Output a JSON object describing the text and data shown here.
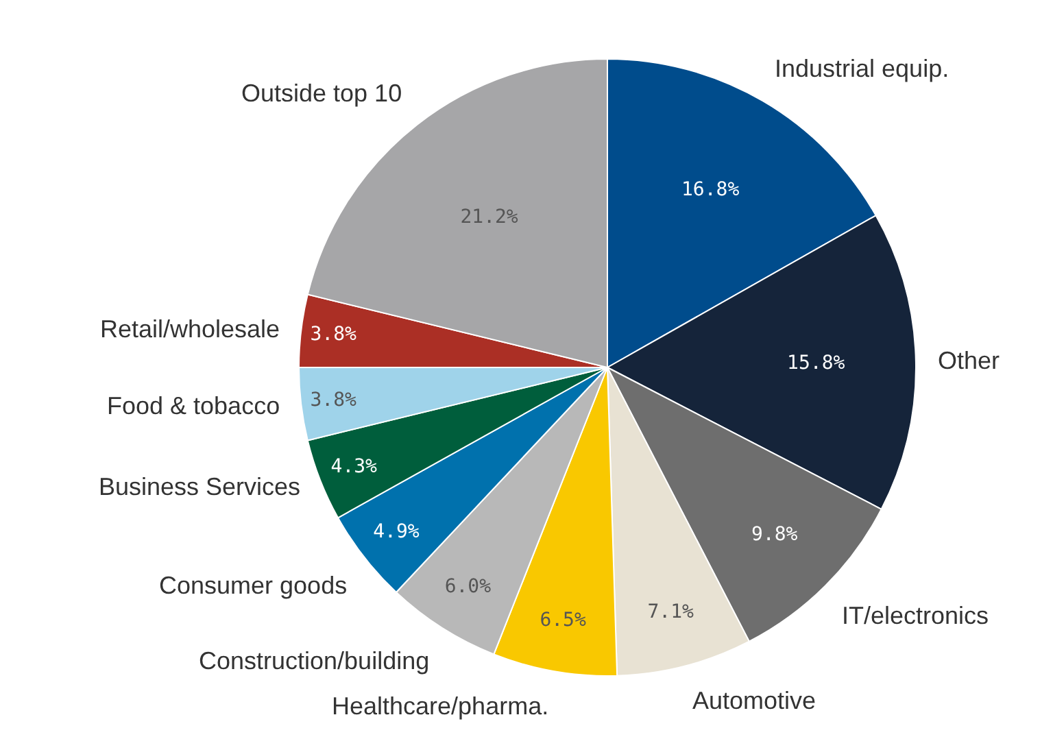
{
  "chart_data": {
    "type": "pie",
    "categories": [
      "Industrial equip.",
      "Other",
      "IT/electronics",
      "Automotive",
      "Healthcare/pharma.",
      "Construction/building",
      "Consumer goods",
      "Business Services",
      "Food & tobacco",
      "Retail/wholesale",
      "Outside top 10"
    ],
    "values": [
      16.8,
      15.8,
      9.8,
      7.1,
      6.5,
      6.0,
      4.9,
      4.3,
      3.8,
      3.8,
      21.2
    ],
    "value_labels": [
      "16.8%",
      "15.8%",
      "9.8%",
      "7.1%",
      "6.5%",
      "6.0%",
      "4.9%",
      "4.3%",
      "3.8%",
      "3.8%",
      "21.2%"
    ],
    "colors": [
      "#004c8c",
      "#15243a",
      "#6e6e6e",
      "#e8e2d3",
      "#f9c800",
      "#b8b8b8",
      "#0071ad",
      "#005e3c",
      "#9fd3ea",
      "#ab2f25",
      "#a6a6a8"
    ],
    "legend": false
  }
}
